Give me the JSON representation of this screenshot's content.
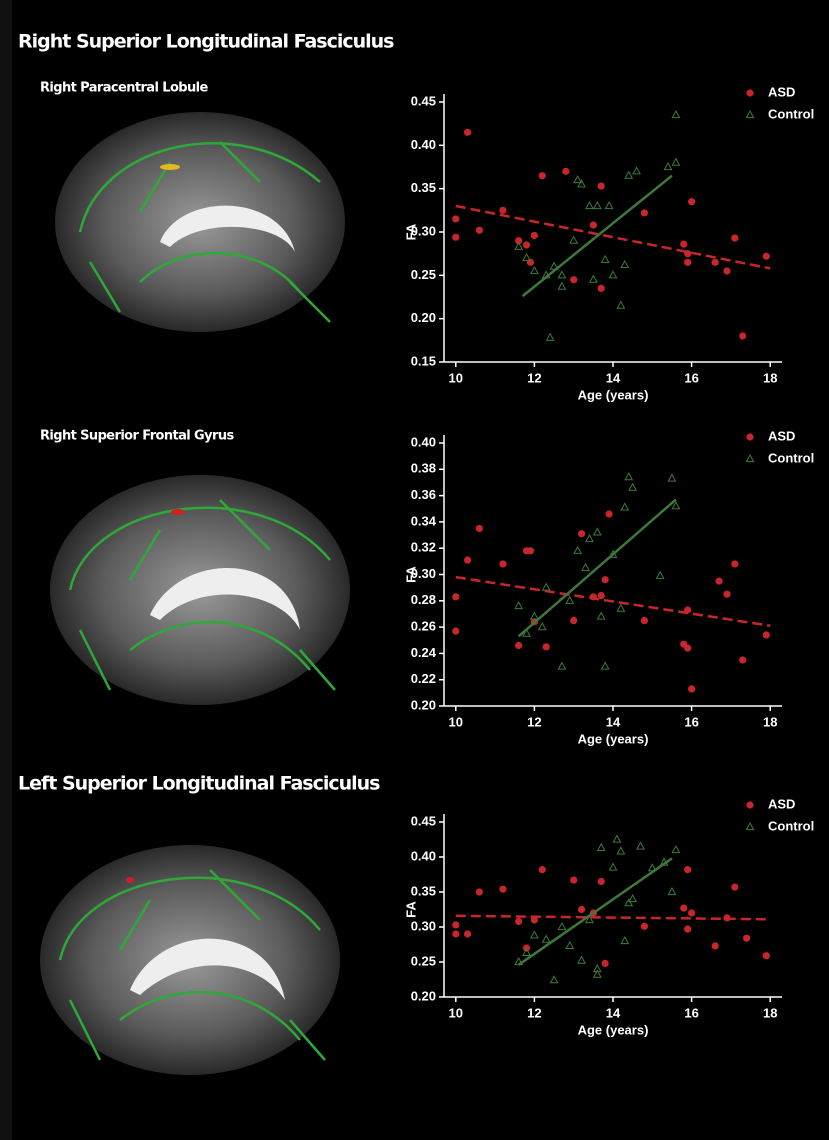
{
  "headings": [
    "Right Superior Longitudinal Fasciculus",
    "Left Superior Longitudinal Fasciculus"
  ],
  "chart_data": [
    {
      "type": "scatter",
      "title": "Right Paracentral Lobule",
      "xlabel": "Age (years)",
      "ylabel": "FA",
      "xlim": [
        9.7,
        18.3
      ],
      "xticks": [
        10,
        12,
        14,
        16,
        18
      ],
      "ylim": [
        0.15,
        0.45
      ],
      "yticks": [
        0.15,
        {
          "value": 0.2,
          "label": "0.20"
        },
        0.25,
        {
          "value": 0.3,
          "label": "0.30"
        },
        0.35,
        {
          "value": 0.4,
          "label": "0.40"
        },
        0.45
      ],
      "series": [
        {
          "name": "ASD",
          "color": "#c8262c",
          "marker": "circle",
          "x": [
            10.0,
            10.0,
            10.3,
            10.6,
            11.2,
            11.6,
            11.8,
            11.9,
            12.0,
            12.2,
            12.8,
            13.0,
            13.5,
            13.7,
            13.7,
            14.8,
            15.8,
            15.9,
            15.9,
            16.0,
            16.6,
            16.9,
            17.1,
            17.3,
            17.9
          ],
          "values": [
            0.315,
            0.294,
            0.415,
            0.302,
            0.325,
            0.29,
            0.285,
            0.265,
            0.296,
            0.365,
            0.37,
            0.245,
            0.308,
            0.353,
            0.235,
            0.322,
            0.286,
            0.265,
            0.275,
            0.335,
            0.265,
            0.255,
            0.293,
            0.18,
            0.272
          ],
          "fit": {
            "x": [
              10,
              18
            ],
            "values": [
              0.33,
              0.258
            ]
          }
        },
        {
          "name": "Control",
          "color": "#3d7a3a",
          "marker": "triangle",
          "x": [
            11.6,
            11.8,
            12.0,
            12.3,
            12.4,
            12.5,
            12.7,
            12.7,
            13.0,
            13.1,
            13.2,
            13.4,
            13.5,
            13.6,
            13.8,
            13.9,
            14.0,
            14.2,
            14.3,
            14.4,
            14.6,
            15.4,
            15.6,
            15.6
          ],
          "values": [
            0.283,
            0.27,
            0.255,
            0.25,
            0.178,
            0.26,
            0.237,
            0.25,
            0.29,
            0.36,
            0.355,
            0.33,
            0.245,
            0.33,
            0.268,
            0.33,
            0.25,
            0.215,
            0.262,
            0.365,
            0.37,
            0.375,
            0.38,
            0.435
          ],
          "fit": {
            "x": [
              11.7,
              15.5
            ],
            "values": [
              0.226,
              0.365
            ]
          }
        }
      ]
    },
    {
      "type": "scatter",
      "title": "Right Superior Frontal Gyrus",
      "xlabel": "Age (years)",
      "ylabel": "FA",
      "xlim": [
        9.7,
        18.3
      ],
      "xticks": [
        10,
        12,
        14,
        16,
        18
      ],
      "ylim": [
        0.2,
        0.4
      ],
      "yticks": [
        {
          "value": 0.2,
          "label": "0.20"
        },
        0.22,
        0.24,
        0.26,
        0.28,
        {
          "value": 0.3,
          "label": "0.30"
        },
        0.32,
        0.34,
        0.36,
        0.38,
        {
          "value": 0.4,
          "label": "0.40"
        }
      ],
      "series": [
        {
          "name": "ASD",
          "color": "#c8262c",
          "marker": "circle",
          "x": [
            10.0,
            10.0,
            10.3,
            10.6,
            11.2,
            11.6,
            11.8,
            11.9,
            12.0,
            12.3,
            13.0,
            13.2,
            13.5,
            13.7,
            13.8,
            13.9,
            14.8,
            15.8,
            15.9,
            15.9,
            16.0,
            16.7,
            16.9,
            17.1,
            17.3,
            17.9
          ],
          "values": [
            0.283,
            0.257,
            0.311,
            0.335,
            0.308,
            0.246,
            0.318,
            0.318,
            0.264,
            0.245,
            0.265,
            0.331,
            0.283,
            0.284,
            0.296,
            0.346,
            0.265,
            0.247,
            0.244,
            0.273,
            0.213,
            0.295,
            0.285,
            0.308,
            0.235,
            0.254
          ],
          "fit": {
            "x": [
              10,
              18
            ],
            "values": [
              0.298,
              0.261
            ]
          }
        },
        {
          "name": "Control",
          "color": "#3d7a3a",
          "marker": "triangle",
          "x": [
            11.6,
            11.8,
            12.0,
            12.2,
            12.3,
            12.7,
            12.9,
            13.1,
            13.3,
            13.4,
            13.6,
            13.7,
            13.8,
            14.0,
            14.2,
            14.3,
            14.4,
            14.5,
            15.2,
            15.5,
            15.6
          ],
          "values": [
            0.276,
            0.255,
            0.268,
            0.26,
            0.29,
            0.23,
            0.28,
            0.318,
            0.305,
            0.327,
            0.332,
            0.268,
            0.23,
            0.315,
            0.274,
            0.351,
            0.374,
            0.366,
            0.299,
            0.373,
            0.352
          ],
          "fit": {
            "x": [
              11.6,
              15.6
            ],
            "values": [
              0.253,
              0.357
            ]
          }
        }
      ]
    },
    {
      "type": "scatter",
      "xlabel": "Age (years)",
      "ylabel": "FA",
      "xlim": [
        9.7,
        18.3
      ],
      "xticks": [
        10,
        12,
        14,
        16,
        18
      ],
      "ylim": [
        0.2,
        0.45
      ],
      "yticks": [
        {
          "value": 0.2,
          "label": "0.20"
        },
        0.25,
        {
          "value": 0.3,
          "label": "0.30"
        },
        0.35,
        {
          "value": 0.4,
          "label": "0.40"
        },
        0.45
      ],
      "series": [
        {
          "name": "ASD",
          "color": "#c8262c",
          "marker": "circle",
          "x": [
            10.0,
            10.0,
            10.3,
            10.6,
            11.2,
            11.6,
            11.8,
            12.0,
            12.2,
            13.0,
            13.2,
            13.5,
            13.7,
            13.8,
            14.8,
            15.8,
            15.9,
            15.9,
            16.0,
            16.6,
            16.9,
            17.1,
            17.4,
            17.9
          ],
          "values": [
            0.303,
            0.29,
            0.29,
            0.35,
            0.354,
            0.308,
            0.27,
            0.31,
            0.382,
            0.367,
            0.325,
            0.32,
            0.365,
            0.248,
            0.301,
            0.327,
            0.297,
            0.382,
            0.32,
            0.273,
            0.313,
            0.357,
            0.284,
            0.259
          ],
          "fit": {
            "x": [
              10,
              18
            ],
            "values": [
              0.316,
              0.311
            ]
          }
        },
        {
          "name": "Control",
          "color": "#3d7a3a",
          "marker": "triangle",
          "x": [
            11.6,
            11.8,
            12.0,
            12.3,
            12.5,
            12.7,
            12.9,
            13.2,
            13.4,
            13.6,
            13.6,
            13.7,
            14.0,
            14.1,
            14.2,
            14.3,
            14.4,
            14.5,
            14.7,
            15.0,
            15.3,
            15.5,
            15.6
          ],
          "values": [
            0.25,
            0.263,
            0.288,
            0.282,
            0.224,
            0.3,
            0.273,
            0.252,
            0.31,
            0.24,
            0.232,
            0.413,
            0.385,
            0.425,
            0.408,
            0.28,
            0.334,
            0.34,
            0.415,
            0.384,
            0.392,
            0.35,
            0.41
          ],
          "fit": {
            "x": [
              11.6,
              15.5
            ],
            "values": [
              0.246,
              0.398
            ]
          }
        }
      ]
    }
  ]
}
